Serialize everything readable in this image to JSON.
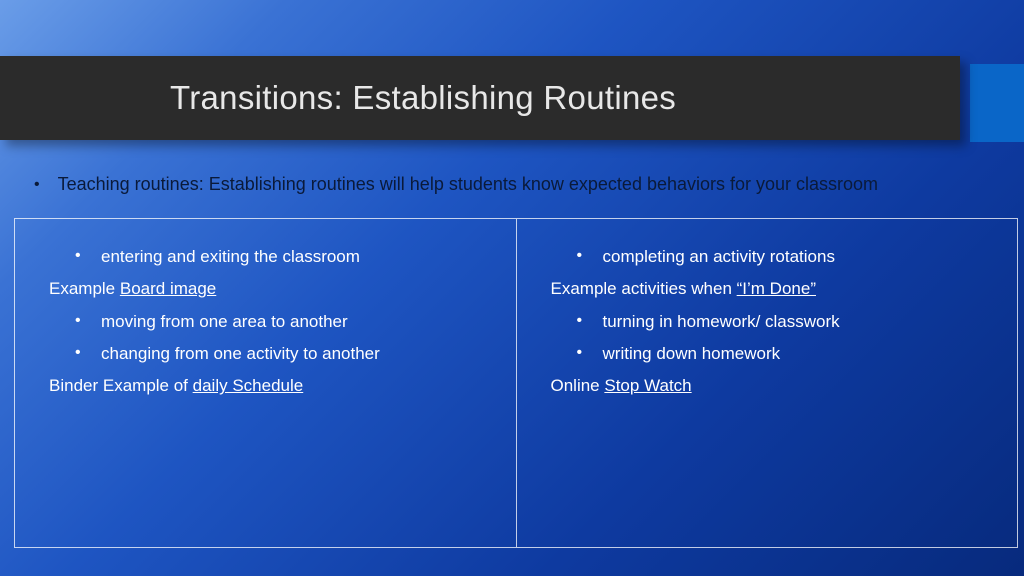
{
  "title": "Transitions: Establishing Routines",
  "intro": "Teaching routines: Establishing routines will help students know expected behaviors for your classroom",
  "colors": {
    "title_bar_bg": "#2b2b2b",
    "title_text": "#e8e8e8",
    "accent_block": "#0a66c8",
    "intro_text": "#0a1a3a",
    "body_text": "#ffffff",
    "border": "rgba(255,255,255,0.75)",
    "bg_gradient_start": "#6a9de8",
    "bg_gradient_end": "#072a7d"
  },
  "left": {
    "b1": "entering and exiting the classroom",
    "ex1_prefix": "Example ",
    "ex1_link": "Board image",
    "b2": "moving from one area to another",
    "b3": "changing from one activity to another",
    "ex2_prefix": "Binder Example of ",
    "ex2_link": "daily Schedule"
  },
  "right": {
    "b1": "completing an activity rotations",
    "ex1_prefix": "Example activities when ",
    "ex1_link": "“I’m Done”",
    "b2": "turning in homework/ classwork",
    "b3": "writing down homework",
    "ex2_prefix": "Online ",
    "ex2_link": "Stop Watch"
  }
}
